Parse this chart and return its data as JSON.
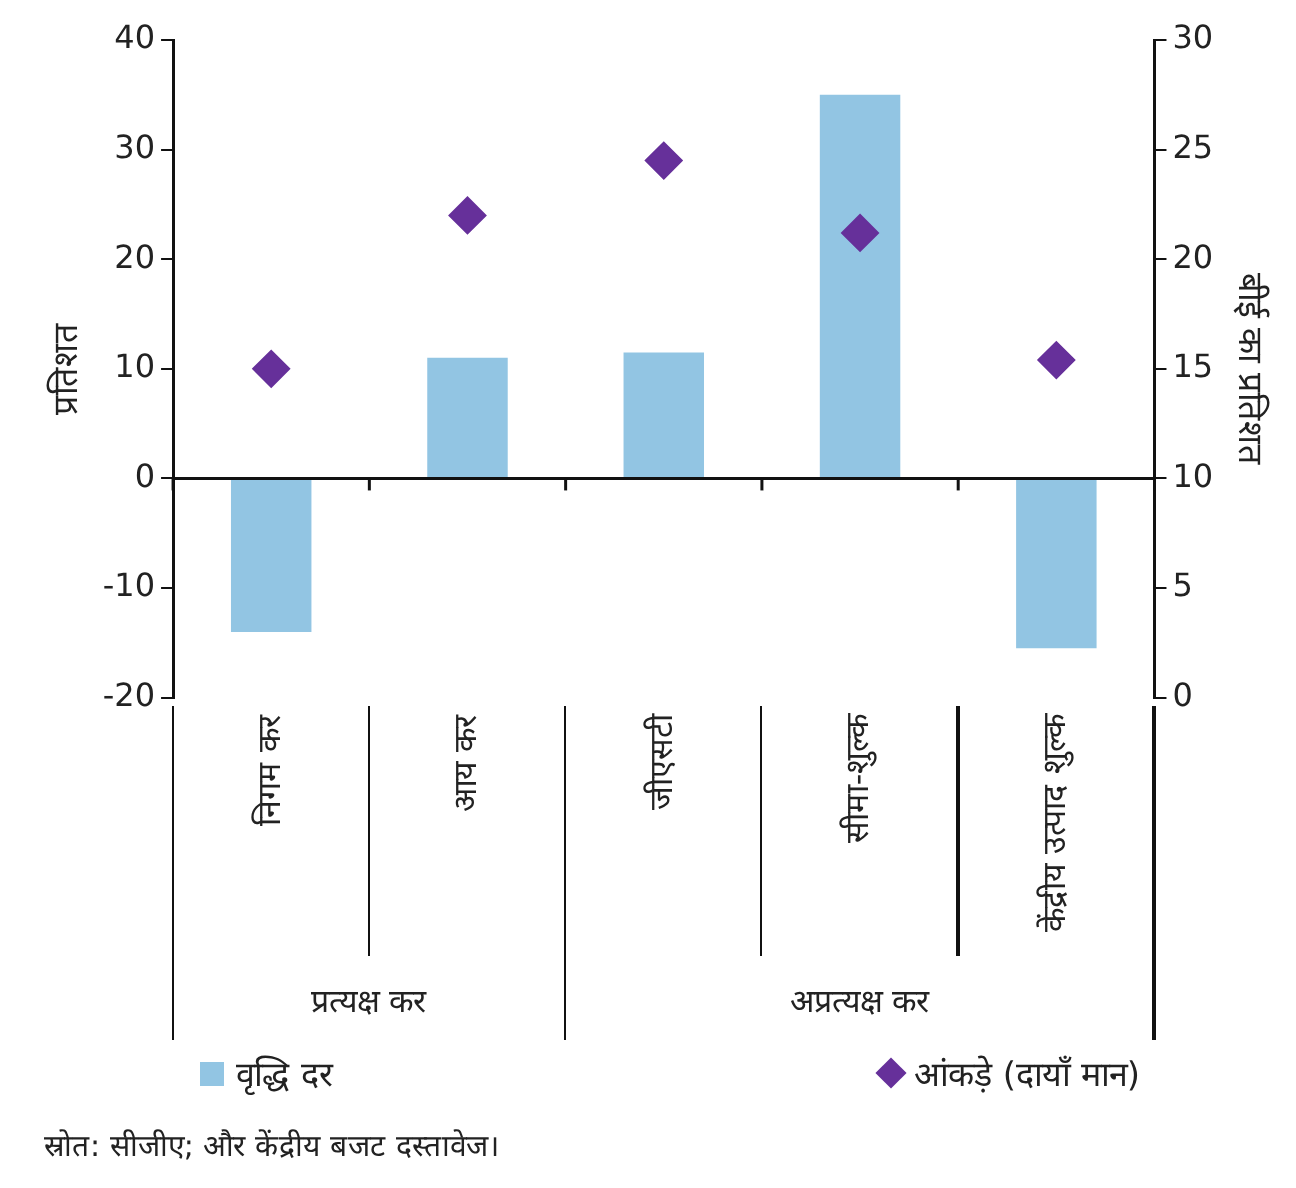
{
  "chart_data": {
    "type": "bar",
    "categories": [
      "निगम कर",
      "आय कर",
      "जीएसटी",
      "सीमा-शुल्क",
      "केंद्रीय उत्पाद शुल्क"
    ],
    "series": [
      {
        "name": "वृद्धि दर",
        "type": "bar",
        "color": "#92c5e3",
        "values": [
          -14,
          11,
          11.5,
          35,
          -15.5
        ]
      },
      {
        "name": "आंकड़े (दायाँ मान)",
        "type": "scatter",
        "axis": "y2",
        "color": "#66309a",
        "marker": "diamond",
        "x": [
          "निगम कर",
          "आय कर",
          "जीएसटी",
          "सीमा-शुल्क",
          "केंद्रीय उत्पाद शुल्क"
        ],
        "values": [
          15,
          22,
          24.5,
          21.2,
          15.4
        ]
      }
    ],
    "ylabel": "प्रतिशत",
    "y2label": "बीई का प्रतिशत",
    "ylim": [
      -20,
      40
    ],
    "yticks": [
      -20,
      -10,
      0,
      10,
      20,
      30,
      40
    ],
    "y2lim": [
      0,
      30
    ],
    "y2ticks": [
      0,
      5,
      10,
      15,
      20,
      25,
      30
    ],
    "grid": false,
    "ref_lines": [
      {
        "axis": "y",
        "value": 0,
        "color": "#111111"
      }
    ],
    "legend": "bottom",
    "annotations": [
      "प्रत्यक्ष कर",
      "अप्रत्यक्ष कर",
      "स्रोत: सीजीए; और केंद्रीय बजट दस्तावेज।"
    ]
  }
}
